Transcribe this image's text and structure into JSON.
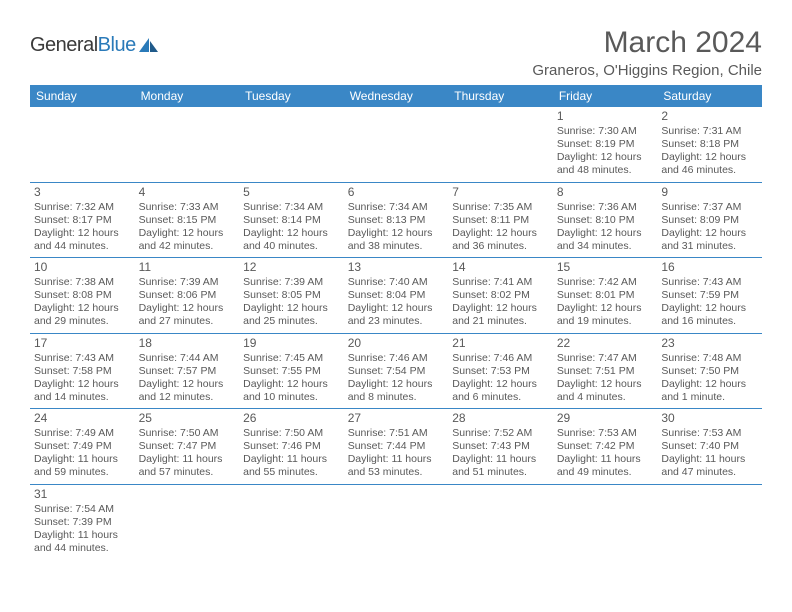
{
  "logo": {
    "part1": "General",
    "part2": "Blue"
  },
  "title": "March 2024",
  "location": "Graneros, O'Higgins Region, Chile",
  "colors": {
    "headerBg": "#3a87c6",
    "headerFg": "#ffffff",
    "text": "#595959",
    "rule": "#3a87c6"
  },
  "font": {
    "title_size": 30,
    "location_size": 15,
    "header_size": 12,
    "day_size": 12,
    "detail_size": 10.5
  },
  "weekdays": [
    "Sunday",
    "Monday",
    "Tuesday",
    "Wednesday",
    "Thursday",
    "Friday",
    "Saturday"
  ],
  "weeks": [
    [
      null,
      null,
      null,
      null,
      null,
      {
        "n": "1",
        "sr": "Sunrise: 7:30 AM",
        "ss": "Sunset: 8:19 PM",
        "dl": "Daylight: 12 hours and 48 minutes."
      },
      {
        "n": "2",
        "sr": "Sunrise: 7:31 AM",
        "ss": "Sunset: 8:18 PM",
        "dl": "Daylight: 12 hours and 46 minutes."
      }
    ],
    [
      {
        "n": "3",
        "sr": "Sunrise: 7:32 AM",
        "ss": "Sunset: 8:17 PM",
        "dl": "Daylight: 12 hours and 44 minutes."
      },
      {
        "n": "4",
        "sr": "Sunrise: 7:33 AM",
        "ss": "Sunset: 8:15 PM",
        "dl": "Daylight: 12 hours and 42 minutes."
      },
      {
        "n": "5",
        "sr": "Sunrise: 7:34 AM",
        "ss": "Sunset: 8:14 PM",
        "dl": "Daylight: 12 hours and 40 minutes."
      },
      {
        "n": "6",
        "sr": "Sunrise: 7:34 AM",
        "ss": "Sunset: 8:13 PM",
        "dl": "Daylight: 12 hours and 38 minutes."
      },
      {
        "n": "7",
        "sr": "Sunrise: 7:35 AM",
        "ss": "Sunset: 8:11 PM",
        "dl": "Daylight: 12 hours and 36 minutes."
      },
      {
        "n": "8",
        "sr": "Sunrise: 7:36 AM",
        "ss": "Sunset: 8:10 PM",
        "dl": "Daylight: 12 hours and 34 minutes."
      },
      {
        "n": "9",
        "sr": "Sunrise: 7:37 AM",
        "ss": "Sunset: 8:09 PM",
        "dl": "Daylight: 12 hours and 31 minutes."
      }
    ],
    [
      {
        "n": "10",
        "sr": "Sunrise: 7:38 AM",
        "ss": "Sunset: 8:08 PM",
        "dl": "Daylight: 12 hours and 29 minutes."
      },
      {
        "n": "11",
        "sr": "Sunrise: 7:39 AM",
        "ss": "Sunset: 8:06 PM",
        "dl": "Daylight: 12 hours and 27 minutes."
      },
      {
        "n": "12",
        "sr": "Sunrise: 7:39 AM",
        "ss": "Sunset: 8:05 PM",
        "dl": "Daylight: 12 hours and 25 minutes."
      },
      {
        "n": "13",
        "sr": "Sunrise: 7:40 AM",
        "ss": "Sunset: 8:04 PM",
        "dl": "Daylight: 12 hours and 23 minutes."
      },
      {
        "n": "14",
        "sr": "Sunrise: 7:41 AM",
        "ss": "Sunset: 8:02 PM",
        "dl": "Daylight: 12 hours and 21 minutes."
      },
      {
        "n": "15",
        "sr": "Sunrise: 7:42 AM",
        "ss": "Sunset: 8:01 PM",
        "dl": "Daylight: 12 hours and 19 minutes."
      },
      {
        "n": "16",
        "sr": "Sunrise: 7:43 AM",
        "ss": "Sunset: 7:59 PM",
        "dl": "Daylight: 12 hours and 16 minutes."
      }
    ],
    [
      {
        "n": "17",
        "sr": "Sunrise: 7:43 AM",
        "ss": "Sunset: 7:58 PM",
        "dl": "Daylight: 12 hours and 14 minutes."
      },
      {
        "n": "18",
        "sr": "Sunrise: 7:44 AM",
        "ss": "Sunset: 7:57 PM",
        "dl": "Daylight: 12 hours and 12 minutes."
      },
      {
        "n": "19",
        "sr": "Sunrise: 7:45 AM",
        "ss": "Sunset: 7:55 PM",
        "dl": "Daylight: 12 hours and 10 minutes."
      },
      {
        "n": "20",
        "sr": "Sunrise: 7:46 AM",
        "ss": "Sunset: 7:54 PM",
        "dl": "Daylight: 12 hours and 8 minutes."
      },
      {
        "n": "21",
        "sr": "Sunrise: 7:46 AM",
        "ss": "Sunset: 7:53 PM",
        "dl": "Daylight: 12 hours and 6 minutes."
      },
      {
        "n": "22",
        "sr": "Sunrise: 7:47 AM",
        "ss": "Sunset: 7:51 PM",
        "dl": "Daylight: 12 hours and 4 minutes."
      },
      {
        "n": "23",
        "sr": "Sunrise: 7:48 AM",
        "ss": "Sunset: 7:50 PM",
        "dl": "Daylight: 12 hours and 1 minute."
      }
    ],
    [
      {
        "n": "24",
        "sr": "Sunrise: 7:49 AM",
        "ss": "Sunset: 7:49 PM",
        "dl": "Daylight: 11 hours and 59 minutes."
      },
      {
        "n": "25",
        "sr": "Sunrise: 7:50 AM",
        "ss": "Sunset: 7:47 PM",
        "dl": "Daylight: 11 hours and 57 minutes."
      },
      {
        "n": "26",
        "sr": "Sunrise: 7:50 AM",
        "ss": "Sunset: 7:46 PM",
        "dl": "Daylight: 11 hours and 55 minutes."
      },
      {
        "n": "27",
        "sr": "Sunrise: 7:51 AM",
        "ss": "Sunset: 7:44 PM",
        "dl": "Daylight: 11 hours and 53 minutes."
      },
      {
        "n": "28",
        "sr": "Sunrise: 7:52 AM",
        "ss": "Sunset: 7:43 PM",
        "dl": "Daylight: 11 hours and 51 minutes."
      },
      {
        "n": "29",
        "sr": "Sunrise: 7:53 AM",
        "ss": "Sunset: 7:42 PM",
        "dl": "Daylight: 11 hours and 49 minutes."
      },
      {
        "n": "30",
        "sr": "Sunrise: 7:53 AM",
        "ss": "Sunset: 7:40 PM",
        "dl": "Daylight: 11 hours and 47 minutes."
      }
    ],
    [
      {
        "n": "31",
        "sr": "Sunrise: 7:54 AM",
        "ss": "Sunset: 7:39 PM",
        "dl": "Daylight: 11 hours and 44 minutes."
      },
      null,
      null,
      null,
      null,
      null,
      null
    ]
  ]
}
